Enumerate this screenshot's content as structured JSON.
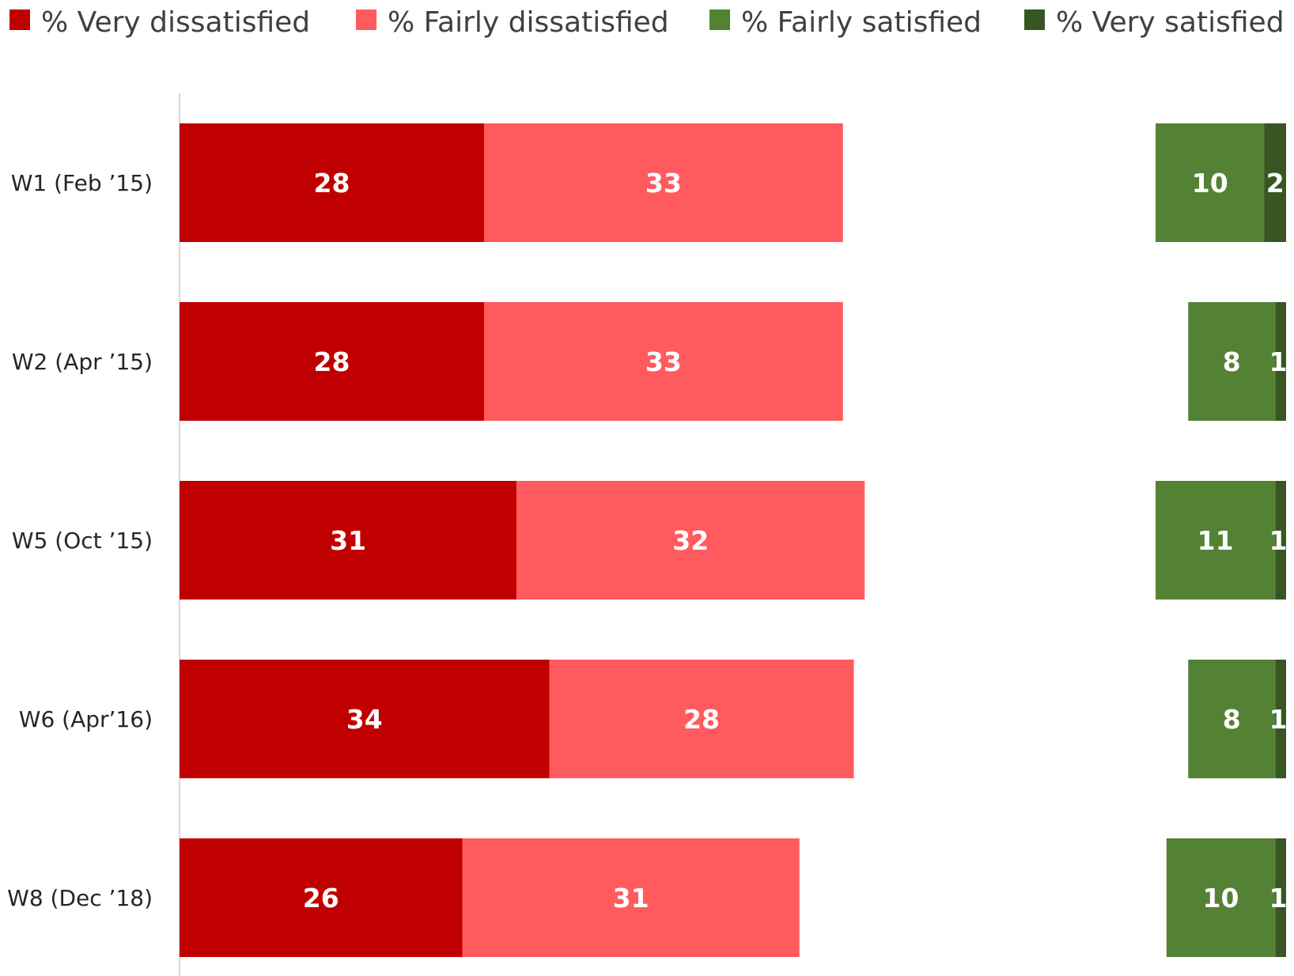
{
  "chart_data": {
    "type": "bar",
    "orientation": "horizontal",
    "stacked": true,
    "layout_note_words": "dissatisfied stacked on left, satisfied stacked on right",
    "legend_position": "top",
    "grid": false,
    "categories": [
      "W1 (Feb ’15)",
      "W2 (Apr ’15)",
      "W5 (Oct ’15)",
      "W6 (Apr’16)",
      "W8 (Dec ’18)"
    ],
    "series": [
      {
        "name": "% Very dissatisfied",
        "color": "#c00000",
        "group": "dissatisfied",
        "values": [
          28,
          28,
          31,
          34,
          26
        ]
      },
      {
        "name": "% Fairly dissatisfied",
        "color": "#ff5b5f",
        "group": "dissatisfied",
        "values": [
          33,
          33,
          32,
          28,
          31
        ]
      },
      {
        "name": "% Fairly satisfied",
        "color": "#548235",
        "group": "satisfied",
        "values": [
          10,
          8,
          11,
          8,
          10
        ]
      },
      {
        "name": "% Very satisfied",
        "color": "#375623",
        "group": "satisfied",
        "values": [
          2,
          1,
          1,
          1,
          1
        ]
      }
    ]
  }
}
